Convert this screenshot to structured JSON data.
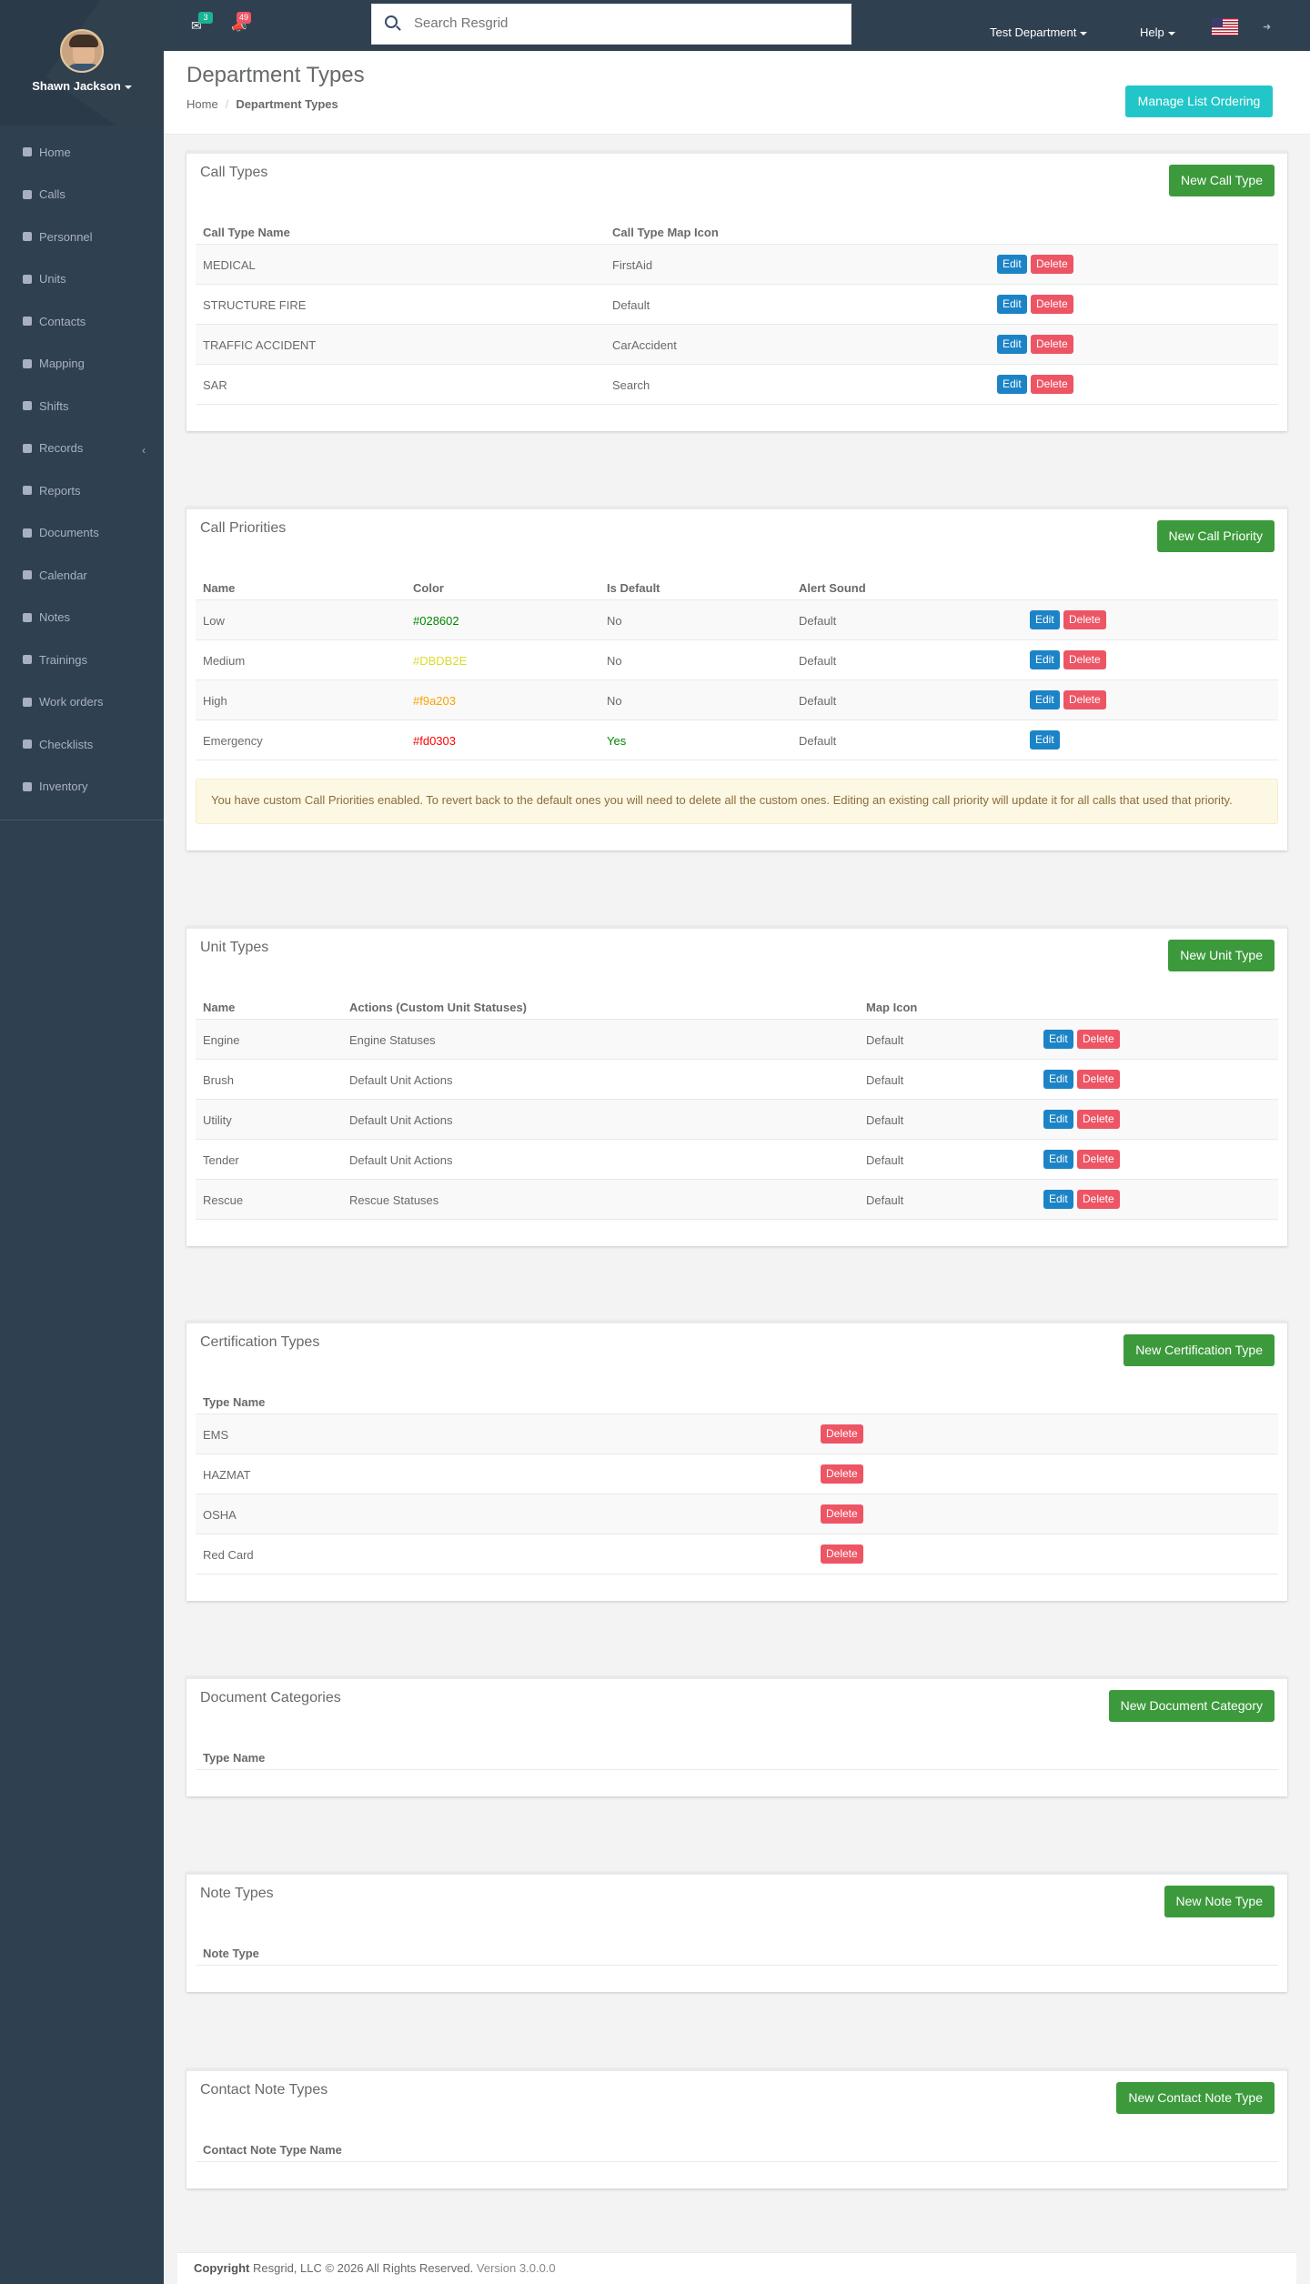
{
  "user": {
    "name": "Shawn Jackson"
  },
  "sidebar": {
    "items": [
      {
        "label": "Home",
        "icon": "home-icon"
      },
      {
        "label": "Calls",
        "icon": "bullhorn-icon"
      },
      {
        "label": "Personnel",
        "icon": "user-icon"
      },
      {
        "label": "Units",
        "icon": "truck-icon"
      },
      {
        "label": "Contacts",
        "icon": "address-book-icon"
      },
      {
        "label": "Mapping",
        "icon": "map-marker-icon"
      },
      {
        "label": "Shifts",
        "icon": "briefcase-icon"
      },
      {
        "label": "Records",
        "icon": "file-icon"
      },
      {
        "label": "Reports",
        "icon": "chart-icon"
      },
      {
        "label": "Documents",
        "icon": "document-icon"
      },
      {
        "label": "Calendar",
        "icon": "calendar-icon"
      },
      {
        "label": "Notes",
        "icon": "notes-icon"
      },
      {
        "label": "Trainings",
        "icon": "book-icon"
      },
      {
        "label": "Work orders",
        "icon": "wrench-icon"
      },
      {
        "label": "Checklists",
        "icon": "checklist-icon"
      },
      {
        "label": "Inventory",
        "icon": "list-icon"
      }
    ]
  },
  "topbar": {
    "messages_count": "3",
    "alerts_count": "49",
    "search_placeholder": "Search Resgrid",
    "department": "Test Department",
    "help": "Help"
  },
  "page": {
    "title": "Department Types",
    "breadcrumb_home": "Home",
    "breadcrumb_current": "Department Types",
    "manage_button": "Manage List Ordering"
  },
  "call_types": {
    "title": "Call Types",
    "new_button": "New Call Type",
    "headers": [
      "Call Type Name",
      "Call Type Map Icon"
    ],
    "rows": [
      {
        "name": "MEDICAL",
        "icon": "FirstAid"
      },
      {
        "name": "STRUCTURE FIRE",
        "icon": "Default"
      },
      {
        "name": "TRAFFIC ACCIDENT",
        "icon": "CarAccident"
      },
      {
        "name": "SAR",
        "icon": "Search"
      }
    ]
  },
  "call_priorities": {
    "title": "Call Priorities",
    "new_button": "New Call Priority",
    "headers": [
      "Name",
      "Color",
      "Is Default",
      "Alert Sound"
    ],
    "rows": [
      {
        "name": "Low",
        "color": "#028602",
        "is_default": "No",
        "sound": "Default"
      },
      {
        "name": "Medium",
        "color": "#DBDB2E",
        "is_default": "No",
        "sound": "Default"
      },
      {
        "name": "High",
        "color": "#f9a203",
        "is_default": "No",
        "sound": "Default"
      },
      {
        "name": "Emergency",
        "color": "#fd0303",
        "is_default": "Yes",
        "sound": "Default"
      }
    ],
    "alert": "You have custom Call Priorities enabled. To revert back to the default ones you will need to delete all the custom ones. Editing an existing call priority will update it for all calls that used that priority."
  },
  "unit_types": {
    "title": "Unit Types",
    "new_button": "New Unit Type",
    "headers": [
      "Name",
      "Actions (Custom Unit Statuses)",
      "Map Icon"
    ],
    "rows": [
      {
        "name": "Engine",
        "actions": "Engine Statuses",
        "icon": "Default"
      },
      {
        "name": "Brush",
        "actions": "Default Unit Actions",
        "icon": "Default"
      },
      {
        "name": "Utility",
        "actions": "Default Unit Actions",
        "icon": "Default"
      },
      {
        "name": "Tender",
        "actions": "Default Unit Actions",
        "icon": "Default"
      },
      {
        "name": "Rescue",
        "actions": "Rescue Statuses",
        "icon": "Default"
      }
    ]
  },
  "certification_types": {
    "title": "Certification Types",
    "new_button": "New Certification Type",
    "headers": [
      "Type Name"
    ],
    "rows": [
      {
        "name": "EMS"
      },
      {
        "name": "HAZMAT"
      },
      {
        "name": "OSHA"
      },
      {
        "name": "Red Card"
      }
    ]
  },
  "document_categories": {
    "title": "Document Categories",
    "new_button": "New Document Category",
    "headers": [
      "Type Name"
    ]
  },
  "note_types": {
    "title": "Note Types",
    "new_button": "New Note Type",
    "headers": [
      "Note Type"
    ]
  },
  "contact_note_types": {
    "title": "Contact Note Types",
    "new_button": "New Contact Note Type",
    "headers": [
      "Contact Note Type Name"
    ]
  },
  "buttons": {
    "edit": "Edit",
    "delete": "Delete"
  },
  "footer": {
    "copyright_label": "Copyright",
    "text": "Resgrid, LLC © 2026 All Rights Reserved.",
    "version": "Version 3.0.0.0"
  },
  "colors": {
    "sidebar": "#2f4050",
    "green_button": "#3c9a3c",
    "edit_button": "#1c84c6",
    "delete_button": "#ed5565",
    "info_button": "#23c6c8",
    "messages_badge": "#1ab394",
    "alerts_badge": "#ed5565"
  }
}
